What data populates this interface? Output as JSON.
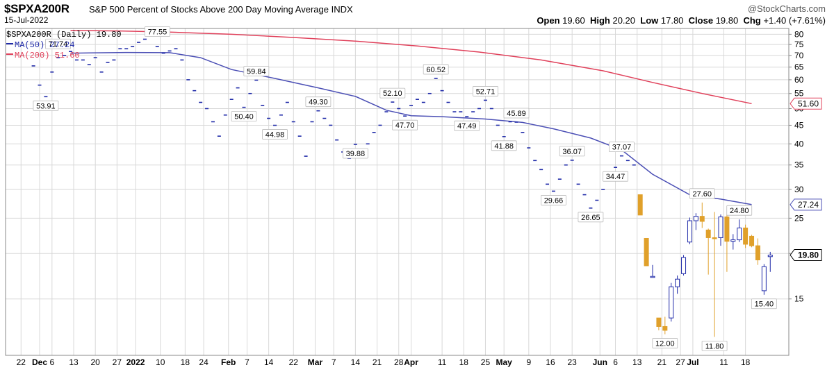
{
  "header": {
    "symbol": "$SPXA200R",
    "description": "S&P 500 Percent of Stocks Above 200 Day Moving Average",
    "exchange": "INDX",
    "date": "15-Jul-2022",
    "brand": "@StockCharts.com",
    "open_label": "Open",
    "open_value": "19.60",
    "high_label": "High",
    "high_value": "20.20",
    "low_label": "Low",
    "low_value": "17.80",
    "close_label": "Close",
    "close_value": "19.80",
    "change_label": "Chg",
    "change_value": "+1.40 (+7.61%)"
  },
  "legend": {
    "price": "$SPXA200R (Daily) 19.80",
    "ma50": "MA(50) 27.24",
    "ma200": "MA(200) 51.60"
  },
  "colors": {
    "up": "#1f2aa8",
    "down": "#e0a02a",
    "ma50": "#4b4fb5",
    "ma200": "#e0405a",
    "grid": "#d8d8d8"
  },
  "chart_data": {
    "type": "candlestick",
    "y_scale": "log",
    "ylim": [
      10.5,
      83
    ],
    "y_ticks": [
      15,
      20,
      25,
      30,
      35,
      40,
      45,
      50,
      55,
      60,
      65,
      70,
      75,
      80
    ],
    "x_ticks": [
      {
        "label": "22",
        "day": -4
      },
      {
        "label": "Dec",
        "day": 2,
        "bold": true
      },
      {
        "label": "6",
        "day": 6
      },
      {
        "label": "13",
        "day": 13
      },
      {
        "label": "20",
        "day": 20
      },
      {
        "label": "27",
        "day": 27
      },
      {
        "label": "2022",
        "day": 33,
        "bold": true
      },
      {
        "label": "10",
        "day": 41
      },
      {
        "label": "18",
        "day": 49
      },
      {
        "label": "24",
        "day": 55
      },
      {
        "label": "Feb",
        "day": 63,
        "bold": true
      },
      {
        "label": "7",
        "day": 69
      },
      {
        "label": "14",
        "day": 76
      },
      {
        "label": "22",
        "day": 84
      },
      {
        "label": "Mar",
        "day": 91,
        "bold": true
      },
      {
        "label": "7",
        "day": 97
      },
      {
        "label": "14",
        "day": 104
      },
      {
        "label": "21",
        "day": 111
      },
      {
        "label": "28",
        "day": 118
      },
      {
        "label": "Apr",
        "day": 122,
        "bold": true
      },
      {
        "label": "11",
        "day": 132
      },
      {
        "label": "18",
        "day": 139
      },
      {
        "label": "25",
        "day": 146
      },
      {
        "label": "May",
        "day": 152,
        "bold": true
      },
      {
        "label": "9",
        "day": 160
      },
      {
        "label": "16",
        "day": 167
      },
      {
        "label": "23",
        "day": 174
      },
      {
        "label": "Jun",
        "day": 183,
        "bold": true
      },
      {
        "label": "6",
        "day": 188
      },
      {
        "label": "13",
        "day": 195
      },
      {
        "label": "21",
        "day": 203
      },
      {
        "label": "27",
        "day": 209
      },
      {
        "label": "Jul",
        "day": 213,
        "bold": true
      },
      {
        "label": "11",
        "day": 223
      },
      {
        "label": "18",
        "day": 230
      }
    ],
    "last_day": 227,
    "candles": [
      [
        0,
        65.5,
        65.5,
        65.5,
        65.5
      ],
      [
        2,
        58,
        58,
        58,
        58
      ],
      [
        4,
        53.91,
        53.91,
        53.91,
        53.91
      ],
      [
        6,
        63,
        63,
        63,
        63
      ],
      [
        8,
        69,
        69,
        69,
        69
      ],
      [
        10,
        70,
        70,
        70,
        70
      ],
      [
        12,
        71.74,
        71.74,
        71.74,
        71.74
      ],
      [
        14,
        68,
        68,
        68,
        68
      ],
      [
        16,
        68,
        68,
        68,
        68
      ],
      [
        18,
        66,
        66,
        66,
        66
      ],
      [
        20,
        69,
        69,
        69,
        69
      ],
      [
        22,
        63,
        63,
        63,
        63
      ],
      [
        24,
        67,
        67,
        67,
        67
      ],
      [
        26,
        68,
        68,
        68,
        68
      ],
      [
        28,
        73,
        73,
        73,
        73
      ],
      [
        30,
        73,
        73,
        73,
        73
      ],
      [
        32,
        74,
        74,
        74,
        74
      ],
      [
        34,
        76,
        76,
        76,
        76
      ],
      [
        36,
        77.55,
        77.55,
        77.55,
        77.55
      ],
      [
        38,
        80,
        80,
        80,
        80
      ],
      [
        40,
        74,
        74,
        74,
        74
      ],
      [
        42,
        71,
        71,
        71,
        71
      ],
      [
        44,
        72,
        72,
        72,
        72
      ],
      [
        46,
        73,
        73,
        73,
        73
      ],
      [
        48,
        68,
        68,
        68,
        68
      ],
      [
        50,
        60,
        60,
        60,
        60
      ],
      [
        52,
        56,
        56,
        56,
        56
      ],
      [
        54,
        52,
        52,
        52,
        52
      ],
      [
        56,
        50,
        50,
        50,
        50
      ],
      [
        58,
        46,
        46,
        46,
        46
      ],
      [
        60,
        42,
        42,
        42,
        42
      ],
      [
        62,
        48,
        48,
        48,
        48
      ],
      [
        64,
        53,
        53,
        53,
        53
      ],
      [
        66,
        57,
        57,
        57,
        57
      ],
      [
        68,
        50.4,
        50.4,
        50.4,
        50.4
      ],
      [
        70,
        55,
        55,
        55,
        55
      ],
      [
        72,
        59.84,
        59.84,
        59.84,
        59.84
      ],
      [
        74,
        51,
        51,
        51,
        51
      ],
      [
        76,
        47,
        47,
        47,
        47
      ],
      [
        78,
        44.98,
        44.98,
        44.98,
        44.98
      ],
      [
        80,
        48,
        48,
        48,
        48
      ],
      [
        82,
        52,
        52,
        52,
        52
      ],
      [
        84,
        46,
        46,
        46,
        46
      ],
      [
        86,
        42,
        42,
        42,
        42
      ],
      [
        88,
        37,
        37,
        37,
        37
      ],
      [
        90,
        46,
        46,
        46,
        46
      ],
      [
        92,
        49.3,
        49.3,
        49.3,
        49.3
      ],
      [
        94,
        47,
        47,
        47,
        47
      ],
      [
        96,
        45,
        45,
        45,
        45
      ],
      [
        98,
        41,
        41,
        41,
        41
      ],
      [
        100,
        38,
        38,
        38,
        38
      ],
      [
        102,
        36.5,
        36.5,
        36.5,
        36.5
      ],
      [
        104,
        39.88,
        39.88,
        39.88,
        39.88
      ],
      [
        106,
        37,
        37,
        37,
        37
      ],
      [
        108,
        40,
        40,
        40,
        40
      ],
      [
        110,
        43,
        43,
        43,
        43
      ],
      [
        112,
        45,
        45,
        45,
        45
      ],
      [
        114,
        49,
        49,
        49,
        49
      ],
      [
        116,
        52.1,
        52.1,
        52.1,
        52.1
      ],
      [
        118,
        50,
        50,
        50,
        50
      ],
      [
        120,
        47.7,
        47.7,
        47.7,
        47.7
      ],
      [
        122,
        51,
        51,
        51,
        51
      ],
      [
        124,
        53,
        53,
        53,
        53
      ],
      [
        126,
        52,
        52,
        52,
        52
      ],
      [
        128,
        55,
        55,
        55,
        55
      ],
      [
        130,
        60.52,
        60.52,
        60.52,
        60.52
      ],
      [
        132,
        56,
        56,
        56,
        56
      ],
      [
        134,
        52,
        52,
        52,
        52
      ],
      [
        136,
        49,
        49,
        49,
        49
      ],
      [
        138,
        49,
        49,
        49,
        49
      ],
      [
        140,
        47.49,
        47.49,
        47.49,
        47.49
      ],
      [
        142,
        49,
        49,
        49,
        49
      ],
      [
        144,
        50,
        50,
        50,
        50
      ],
      [
        146,
        52.71,
        52.71,
        52.71,
        52.71
      ],
      [
        148,
        50,
        50,
        50,
        50
      ],
      [
        150,
        45,
        45,
        45,
        45
      ],
      [
        152,
        41.88,
        41.88,
        41.88,
        41.88
      ],
      [
        154,
        46,
        46,
        46,
        46
      ],
      [
        156,
        45.89,
        45.89,
        45.89,
        45.89
      ],
      [
        158,
        43,
        43,
        43,
        43
      ],
      [
        160,
        39,
        39,
        39,
        39
      ],
      [
        162,
        36,
        36,
        36,
        36
      ],
      [
        164,
        34,
        34,
        34,
        34
      ],
      [
        166,
        31,
        31,
        31,
        31
      ],
      [
        168,
        29.66,
        29.66,
        29.66,
        29.66
      ],
      [
        170,
        32,
        32,
        32,
        32
      ],
      [
        172,
        35,
        35,
        35,
        35
      ],
      [
        174,
        36.07,
        36.07,
        36.07,
        36.07
      ],
      [
        176,
        31,
        31,
        31,
        31
      ],
      [
        178,
        29,
        29,
        29,
        29
      ],
      [
        180,
        26.65,
        26.65,
        26.65,
        26.65
      ],
      [
        182,
        28,
        28,
        28,
        28
      ],
      [
        184,
        30,
        30,
        30,
        30
      ],
      [
        186,
        32,
        32,
        32,
        32
      ],
      [
        188,
        34.47,
        34.47,
        34.47,
        34.47
      ],
      [
        190,
        37.07,
        37.07,
        37.07,
        37.07
      ],
      [
        192,
        36,
        36,
        36,
        36
      ],
      [
        194,
        35,
        35,
        35,
        35
      ],
      [
        196,
        29,
        29,
        25.5,
        25.5
      ],
      [
        198,
        22,
        22,
        18.5,
        18.5
      ],
      [
        200,
        17.3,
        18.6,
        17.3,
        17.3
      ],
      [
        202,
        13.3,
        13.3,
        12.3,
        12.6
      ],
      [
        204,
        12.6,
        13.4,
        12.0,
        12.3
      ],
      [
        206,
        13.3,
        16.6,
        13.0,
        16.2
      ],
      [
        208,
        16.2,
        17.4,
        15.5,
        17.0
      ],
      [
        210,
        17.6,
        19.8,
        17.4,
        19.5
      ],
      [
        212,
        21.5,
        25.1,
        21.2,
        24.6
      ],
      [
        214,
        24.6,
        25.8,
        23.2,
        25.3
      ],
      [
        216,
        25.3,
        27.6,
        23.5,
        24.5
      ],
      [
        218,
        23.2,
        23.4,
        17.5,
        22.1
      ],
      [
        220,
        22.1,
        26.0,
        11.8,
        22.0
      ],
      [
        222,
        22.1,
        25.6,
        21.0,
        25.2
      ],
      [
        224,
        25.2,
        25.6,
        17.8,
        21.6
      ],
      [
        226,
        21.6,
        22.6,
        20.5,
        21.8
      ],
      [
        228,
        21.8,
        24.8,
        21.5,
        23.5
      ],
      [
        230,
        23.5,
        24.0,
        20.7,
        21.2
      ],
      [
        232,
        22.3,
        22.5,
        20.8,
        21.0
      ],
      [
        234,
        21.0,
        22.0,
        18.6,
        19.2
      ],
      [
        236,
        15.8,
        18.7,
        15.4,
        18.4
      ],
      [
        238,
        19.6,
        20.2,
        17.8,
        19.8
      ]
    ],
    "ma50": [
      [
        12,
        71
      ],
      [
        30,
        71.3
      ],
      [
        44,
        71.2
      ],
      [
        54,
        69
      ],
      [
        64,
        64
      ],
      [
        78,
        60.5
      ],
      [
        92,
        57
      ],
      [
        104,
        54
      ],
      [
        114,
        49.5
      ],
      [
        122,
        47.8
      ],
      [
        132,
        47.5
      ],
      [
        146,
        46.8
      ],
      [
        158,
        45.8
      ],
      [
        168,
        44
      ],
      [
        180,
        41.5
      ],
      [
        190,
        38.5
      ],
      [
        200,
        33
      ],
      [
        212,
        29
      ],
      [
        222,
        28.2
      ],
      [
        232,
        27.24
      ]
    ],
    "ma200": [
      [
        12,
        82
      ],
      [
        28,
        81.7
      ],
      [
        44,
        81.1
      ],
      [
        64,
        80
      ],
      [
        84,
        78.4
      ],
      [
        104,
        76.6
      ],
      [
        124,
        74.3
      ],
      [
        144,
        71.5
      ],
      [
        164,
        68
      ],
      [
        184,
        63.5
      ],
      [
        200,
        59
      ],
      [
        216,
        55
      ],
      [
        232,
        51.6
      ]
    ],
    "annotations": [
      {
        "day": 4,
        "value": 53.91,
        "text": "53.91",
        "pos": "below"
      },
      {
        "day": 12,
        "value": 71.74,
        "text": "71.74",
        "pos": "left"
      },
      {
        "day": 36,
        "value": 77.55,
        "text": "77.55",
        "pos": "right"
      },
      {
        "day": 68,
        "value": 50.4,
        "text": "50.40",
        "pos": "below"
      },
      {
        "day": 72,
        "value": 59.84,
        "text": "59.84",
        "pos": "above"
      },
      {
        "day": 78,
        "value": 44.98,
        "text": "44.98",
        "pos": "below"
      },
      {
        "day": 92,
        "value": 49.3,
        "text": "49.30",
        "pos": "above"
      },
      {
        "day": 104,
        "value": 39.88,
        "text": "39.88",
        "pos": "below"
      },
      {
        "day": 116,
        "value": 52.1,
        "text": "52.10",
        "pos": "above"
      },
      {
        "day": 120,
        "value": 47.7,
        "text": "47.70",
        "pos": "below"
      },
      {
        "day": 130,
        "value": 60.52,
        "text": "60.52",
        "pos": "above"
      },
      {
        "day": 140,
        "value": 47.49,
        "text": "47.49",
        "pos": "below"
      },
      {
        "day": 146,
        "value": 52.71,
        "text": "52.71",
        "pos": "above"
      },
      {
        "day": 152,
        "value": 41.88,
        "text": "41.88",
        "pos": "below"
      },
      {
        "day": 156,
        "value": 45.89,
        "text": "45.89",
        "pos": "above"
      },
      {
        "day": 168,
        "value": 29.66,
        "text": "29.66",
        "pos": "below"
      },
      {
        "day": 174,
        "value": 36.07,
        "text": "36.07",
        "pos": "above"
      },
      {
        "day": 180,
        "value": 26.65,
        "text": "26.65",
        "pos": "below"
      },
      {
        "day": 188,
        "value": 34.47,
        "text": "34.47",
        "pos": "below"
      },
      {
        "day": 190,
        "value": 37.07,
        "text": "37.07",
        "pos": "above"
      },
      {
        "day": 204,
        "value": 12.0,
        "text": "12.00",
        "pos": "below"
      },
      {
        "day": 216,
        "value": 27.6,
        "text": "27.60",
        "pos": "above"
      },
      {
        "day": 220,
        "value": 11.8,
        "text": "11.80",
        "pos": "below"
      },
      {
        "day": 228,
        "value": 24.8,
        "text": "24.80",
        "pos": "above"
      },
      {
        "day": 236,
        "value": 15.4,
        "text": "15.40",
        "pos": "below"
      }
    ],
    "right_labels": [
      {
        "value": 51.6,
        "text": "51.60",
        "color": "#e0405a"
      },
      {
        "value": 27.24,
        "text": "27.24",
        "color": "#4b4fb5"
      },
      {
        "value": 19.8,
        "text": "19.80",
        "color": "#000000",
        "bold": true
      }
    ]
  }
}
